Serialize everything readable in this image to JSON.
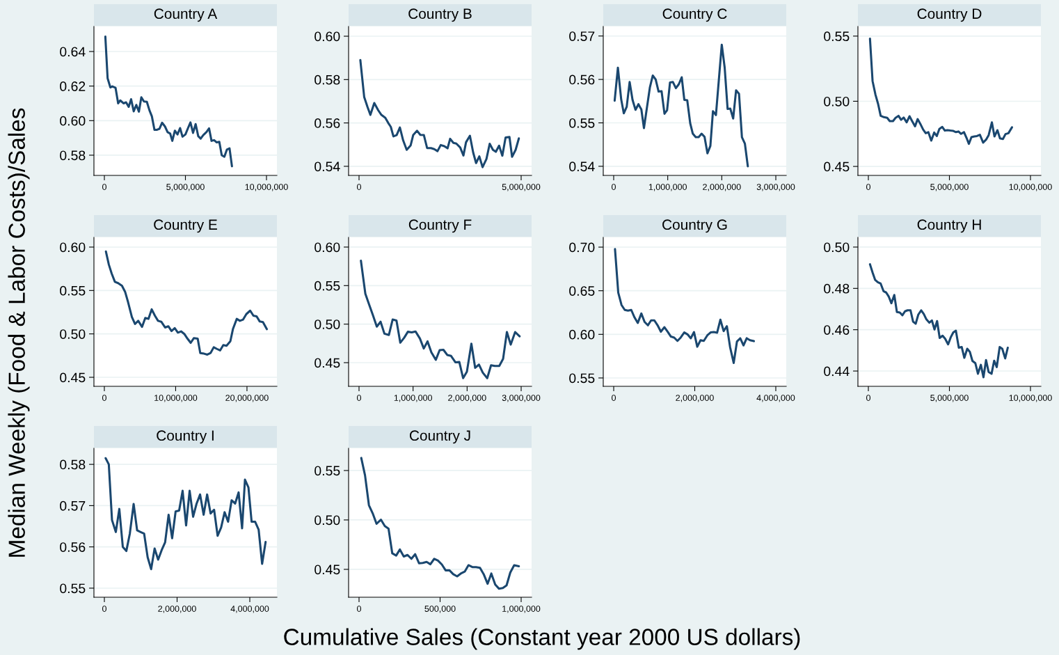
{
  "chart_data": [
    {
      "type": "line",
      "title": "Country A",
      "xlabel": "Cumulative Sales (Constant year 2000 US dollars)",
      "ylabel": "Median Weekly (Food & Labor Costs)/Sales",
      "color": "#1a476f",
      "grid": "y",
      "x": [
        60000,
        200000,
        370000,
        490000,
        690000,
        850000,
        980000,
        1180000,
        1340000,
        1500000,
        1650000,
        1810000,
        1970000,
        2130000,
        2280000,
        2440000,
        2620000,
        2780000,
        2930000,
        3090000,
        3250000,
        3400000,
        3560000,
        3740000,
        3900000,
        4060000,
        4190000,
        4350000,
        4510000,
        4670000,
        4820000,
        5000000,
        5160000,
        5310000,
        5470000,
        5630000,
        5790000,
        5940000,
        6100000,
        6300000,
        6460000,
        6610000,
        6770000,
        6930000,
        7090000,
        7240000,
        7400000,
        7560000,
        7720000,
        7870000
      ],
      "values": [
        0.6486,
        0.6245,
        0.6192,
        0.6198,
        0.619,
        0.61,
        0.6117,
        0.61,
        0.6106,
        0.608,
        0.6124,
        0.6054,
        0.6091,
        0.6052,
        0.6135,
        0.6111,
        0.6109,
        0.606,
        0.6025,
        0.5947,
        0.5947,
        0.5953,
        0.5988,
        0.5966,
        0.5933,
        0.5925,
        0.5883,
        0.5942,
        0.592,
        0.5957,
        0.5907,
        0.592,
        0.5957,
        0.599,
        0.5929,
        0.598,
        0.591,
        0.5896,
        0.5916,
        0.5934,
        0.5955,
        0.5883,
        0.5887,
        0.5874,
        0.5877,
        0.58,
        0.5791,
        0.5833,
        0.584,
        0.5736
      ],
      "xlim": [
        -644000,
        10644000
      ],
      "xticks": [
        {
          "value": 0,
          "label": "0"
        },
        {
          "value": 5000000,
          "label": "5,000,000"
        },
        {
          "value": 10000000,
          "label": "10,000,000"
        }
      ],
      "ylim": [
        0.5683,
        0.6545
      ],
      "yticks": [
        {
          "value": 0.58,
          "label": "0.58"
        },
        {
          "value": 0.6,
          "label": "0.60"
        },
        {
          "value": 0.62,
          "label": "0.62"
        },
        {
          "value": 0.64,
          "label": "0.64"
        }
      ]
    },
    {
      "type": "line",
      "title": "Country B",
      "color": "#1a476f",
      "grid": "y",
      "x": [
        40000,
        160000,
        260000,
        350000,
        470000,
        590000,
        690000,
        810000,
        900000,
        980000,
        1060000,
        1160000,
        1260000,
        1360000,
        1470000,
        1590000,
        1670000,
        1790000,
        1890000,
        2000000,
        2100000,
        2220000,
        2320000,
        2420000,
        2520000,
        2630000,
        2730000,
        2810000,
        2910000,
        3000000,
        3120000,
        3220000,
        3300000,
        3420000,
        3520000,
        3610000,
        3710000,
        3810000,
        3930000,
        4030000,
        4130000,
        4220000,
        4320000,
        4420000,
        4520000,
        4640000,
        4720000,
        4830000,
        4930000
      ],
      "values": [
        0.589,
        0.5719,
        0.5674,
        0.5637,
        0.5692,
        0.5659,
        0.5637,
        0.5624,
        0.56,
        0.5582,
        0.5538,
        0.5544,
        0.5579,
        0.552,
        0.5476,
        0.5496,
        0.5544,
        0.5564,
        0.5545,
        0.5544,
        0.5484,
        0.5484,
        0.5479,
        0.547,
        0.5498,
        0.5493,
        0.5483,
        0.5527,
        0.5508,
        0.5505,
        0.5487,
        0.545,
        0.5511,
        0.5541,
        0.5464,
        0.5415,
        0.5446,
        0.5396,
        0.5434,
        0.5504,
        0.5476,
        0.5467,
        0.5495,
        0.5449,
        0.5533,
        0.5535,
        0.5444,
        0.5476,
        0.5529
      ],
      "xlim": [
        -322000,
        5322000
      ],
      "xticks": [
        {
          "value": 0,
          "label": "0"
        },
        {
          "value": 5000000,
          "label": "5,000,000"
        }
      ],
      "ylim": [
        0.5358,
        0.6045
      ],
      "yticks": [
        {
          "value": 0.54,
          "label": "0.54"
        },
        {
          "value": 0.56,
          "label": "0.56"
        },
        {
          "value": 0.58,
          "label": "0.58"
        },
        {
          "value": 0.6,
          "label": "0.60"
        }
      ]
    },
    {
      "type": "line",
      "title": "Country C",
      "color": "#1a476f",
      "grid": "y",
      "x": [
        18000,
        78000,
        139000,
        187000,
        241000,
        295000,
        349000,
        404000,
        458000,
        512000,
        560000,
        614000,
        669000,
        723000,
        777000,
        831000,
        886000,
        940000,
        988000,
        1042000,
        1096000,
        1151000,
        1205000,
        1259000,
        1307000,
        1361000,
        1416000,
        1464000,
        1518000,
        1572000,
        1627000,
        1681000,
        1735000,
        1789000,
        1837000,
        1892000,
        1946000,
        2000000,
        2054000,
        2108000,
        2157000,
        2211000,
        2265000,
        2319000,
        2373000,
        2428000,
        2482000
      ],
      "values": [
        0.5551,
        0.5627,
        0.5554,
        0.5522,
        0.5537,
        0.5594,
        0.5553,
        0.553,
        0.5543,
        0.5531,
        0.5488,
        0.5534,
        0.5581,
        0.5609,
        0.56,
        0.5572,
        0.5573,
        0.5521,
        0.5529,
        0.5593,
        0.5594,
        0.558,
        0.5589,
        0.5605,
        0.5553,
        0.5552,
        0.5499,
        0.5475,
        0.5467,
        0.5467,
        0.5475,
        0.5468,
        0.543,
        0.5447,
        0.5527,
        0.5518,
        0.5599,
        0.568,
        0.5627,
        0.5532,
        0.5533,
        0.551,
        0.5575,
        0.5567,
        0.5467,
        0.5452,
        0.54
      ],
      "xlim": [
        -193000,
        3193000
      ],
      "xticks": [
        {
          "value": 0,
          "label": "0"
        },
        {
          "value": 1000000,
          "label": "1,000,000"
        },
        {
          "value": 2000000,
          "label": "2,000,000"
        },
        {
          "value": 3000000,
          "label": "3,000,000"
        }
      ],
      "ylim": [
        0.5379,
        0.5722
      ],
      "yticks": [
        {
          "value": 0.54,
          "label": "0.54"
        },
        {
          "value": 0.55,
          "label": "0.55"
        },
        {
          "value": 0.56,
          "label": "0.56"
        },
        {
          "value": 0.57,
          "label": "0.57"
        }
      ]
    },
    {
      "type": "line",
      "title": "Country D",
      "color": "#1a476f",
      "grid": "y",
      "x": [
        100000,
        260000,
        440000,
        600000,
        760000,
        960000,
        1160000,
        1320000,
        1520000,
        1680000,
        1860000,
        2020000,
        2180000,
        2360000,
        2540000,
        2700000,
        2880000,
        3040000,
        3200000,
        3380000,
        3540000,
        3700000,
        3880000,
        4060000,
        4220000,
        4380000,
        4560000,
        4720000,
        4880000,
        5060000,
        5220000,
        5400000,
        5560000,
        5720000,
        5900000,
        6060000,
        6200000,
        6360000,
        6540000,
        6700000,
        6880000,
        7080000,
        7260000,
        7420000,
        7620000,
        7780000,
        7960000,
        8120000,
        8300000,
        8460000,
        8640000,
        8860000
      ],
      "values": [
        0.548,
        0.5155,
        0.505,
        0.498,
        0.4888,
        0.4878,
        0.4873,
        0.4848,
        0.4848,
        0.4873,
        0.4888,
        0.4858,
        0.4875,
        0.4838,
        0.4885,
        0.4848,
        0.4808,
        0.4863,
        0.4828,
        0.4783,
        0.4755,
        0.4763,
        0.4698,
        0.476,
        0.4733,
        0.4788,
        0.4803,
        0.4775,
        0.4778,
        0.4775,
        0.4773,
        0.4763,
        0.4768,
        0.475,
        0.4763,
        0.4718,
        0.4673,
        0.4725,
        0.473,
        0.4733,
        0.4743,
        0.4683,
        0.4705,
        0.474,
        0.4838,
        0.473,
        0.4778,
        0.4715,
        0.471,
        0.4748,
        0.4755,
        0.48
      ],
      "xlim": [
        -644000,
        10644000
      ],
      "xticks": [
        {
          "value": 0,
          "label": "0"
        },
        {
          "value": 5000000,
          "label": "5,000,000"
        },
        {
          "value": 10000000,
          "label": "10,000,000"
        }
      ],
      "ylim": [
        0.4431,
        0.5574
      ],
      "yticks": [
        {
          "value": 0.45,
          "label": "0.45"
        },
        {
          "value": 0.5,
          "label": "0.50"
        },
        {
          "value": 0.55,
          "label": "0.55"
        }
      ]
    },
    {
      "type": "line",
      "title": "Country E",
      "color": "#1a476f",
      "grid": "y",
      "x": [
        220000,
        630000,
        1030000,
        1480000,
        1930000,
        2470000,
        2910000,
        3320000,
        3860000,
        4300000,
        4750000,
        5290000,
        5740000,
        6190000,
        6640000,
        7090000,
        7530000,
        7980000,
        8520000,
        8970000,
        9420000,
        9870000,
        10310000,
        10760000,
        11210000,
        11660000,
        12110000,
        12560000,
        13090000,
        13450000,
        13990000,
        14440000,
        14890000,
        15340000,
        15780000,
        16230000,
        16680000,
        17130000,
        17670000,
        18030000,
        18570000,
        19010000,
        19460000,
        19910000,
        20450000,
        20900000,
        21350000,
        21790000,
        22240000,
        22780000
      ],
      "values": [
        0.5949,
        0.5798,
        0.5695,
        0.56,
        0.5585,
        0.5555,
        0.5485,
        0.5368,
        0.5195,
        0.5114,
        0.5151,
        0.5081,
        0.5184,
        0.5173,
        0.5283,
        0.521,
        0.5151,
        0.514,
        0.5074,
        0.5088,
        0.5033,
        0.5066,
        0.5015,
        0.5029,
        0.5,
        0.4945,
        0.4897,
        0.4952,
        0.4945,
        0.4779,
        0.4772,
        0.4761,
        0.4779,
        0.4846,
        0.4827,
        0.4809,
        0.4871,
        0.4864,
        0.4915,
        0.5055,
        0.5173,
        0.5151,
        0.5165,
        0.5228,
        0.5268,
        0.521,
        0.5202,
        0.5143,
        0.5136,
        0.5055
      ],
      "xlim": [
        -1460000,
        24200000
      ],
      "xticks": [
        {
          "value": 0,
          "label": "0"
        },
        {
          "value": 10000000,
          "label": "10,000,000"
        },
        {
          "value": 20000000,
          "label": "20,000,000"
        }
      ],
      "ylim": [
        0.4396,
        0.6112
      ],
      "yticks": [
        {
          "value": 0.45,
          "label": "0.45"
        },
        {
          "value": 0.5,
          "label": "0.50"
        },
        {
          "value": 0.55,
          "label": "0.55"
        },
        {
          "value": 0.6,
          "label": "0.60"
        }
      ]
    },
    {
      "type": "line",
      "title": "Country F",
      "color": "#1a476f",
      "grid": "y",
      "x": [
        35000,
        117000,
        188000,
        258000,
        329000,
        399000,
        470000,
        552000,
        622000,
        693000,
        763000,
        834000,
        904000,
        975000,
        1045000,
        1127000,
        1198000,
        1268000,
        1339000,
        1421000,
        1492000,
        1562000,
        1632000,
        1703000,
        1785000,
        1856000,
        1926000,
        1996000,
        2079000,
        2149000,
        2220000,
        2290000,
        2372000,
        2443000,
        2513000,
        2595000,
        2666000,
        2736000,
        2807000,
        2889000,
        2971000
      ],
      "values": [
        0.5824,
        0.5394,
        0.5252,
        0.5114,
        0.4968,
        0.5031,
        0.4876,
        0.4859,
        0.506,
        0.5047,
        0.4759,
        0.4822,
        0.4901,
        0.4893,
        0.4905,
        0.4813,
        0.4684,
        0.4776,
        0.4634,
        0.4537,
        0.4663,
        0.4667,
        0.46,
        0.4588,
        0.4504,
        0.4508,
        0.4299,
        0.4383,
        0.4746,
        0.4433,
        0.4475,
        0.437,
        0.4299,
        0.4466,
        0.4458,
        0.4458,
        0.455,
        0.4897,
        0.4734,
        0.4897,
        0.4842
      ],
      "xlim": [
        -193000,
        3193000
      ],
      "xticks": [
        {
          "value": 0,
          "label": "0"
        },
        {
          "value": 1000000,
          "label": "1,000,000"
        },
        {
          "value": 2000000,
          "label": "2,000,000"
        },
        {
          "value": 3000000,
          "label": "3,000,000"
        }
      ],
      "ylim": [
        0.4193,
        0.6126
      ],
      "yticks": [
        {
          "value": 0.45,
          "label": "0.45"
        },
        {
          "value": 0.5,
          "label": "0.50"
        },
        {
          "value": 0.55,
          "label": "0.55"
        },
        {
          "value": 0.6,
          "label": "0.60"
        }
      ]
    },
    {
      "type": "line",
      "title": "Country G",
      "color": "#1a476f",
      "grid": "y",
      "x": [
        32000,
        112000,
        193000,
        273000,
        353000,
        433000,
        514000,
        594000,
        682000,
        762000,
        843000,
        923000,
        1003000,
        1083000,
        1164000,
        1252000,
        1332000,
        1412000,
        1492000,
        1573000,
        1653000,
        1741000,
        1821000,
        1902000,
        1982000,
        2062000,
        2143000,
        2223000,
        2311000,
        2391000,
        2472000,
        2552000,
        2632000,
        2713000,
        2793000,
        2873000,
        2961000,
        3042000,
        3122000,
        3202000,
        3283000,
        3363000,
        3459000
      ],
      "values": [
        0.6978,
        0.6478,
        0.6336,
        0.628,
        0.6272,
        0.628,
        0.6194,
        0.6131,
        0.6239,
        0.6142,
        0.6104,
        0.616,
        0.616,
        0.6104,
        0.603,
        0.6082,
        0.603,
        0.5974,
        0.5963,
        0.5925,
        0.5963,
        0.6022,
        0.6,
        0.5955,
        0.6026,
        0.5858,
        0.5933,
        0.5925,
        0.5989,
        0.6022,
        0.6026,
        0.6019,
        0.6168,
        0.6037,
        0.6093,
        0.5851,
        0.5672,
        0.5918,
        0.5955,
        0.5873,
        0.5955,
        0.5933,
        0.5922
      ],
      "xlim": [
        -258000,
        4258000
      ],
      "xticks": [
        {
          "value": 0,
          "label": "0"
        },
        {
          "value": 2000000,
          "label": "2,000,000"
        },
        {
          "value": 4000000,
          "label": "4,000,000"
        }
      ],
      "ylim": [
        0.5404,
        0.7112
      ],
      "yticks": [
        {
          "value": 0.55,
          "label": "0.55"
        },
        {
          "value": 0.6,
          "label": "0.60"
        },
        {
          "value": 0.65,
          "label": "0.65"
        },
        {
          "value": 0.7,
          "label": "0.70"
        }
      ]
    },
    {
      "type": "line",
      "title": "Country H",
      "color": "#1a476f",
      "grid": "y",
      "x": [
        100000,
        260000,
        420000,
        580000,
        760000,
        940000,
        1100000,
        1260000,
        1420000,
        1600000,
        1760000,
        1940000,
        2100000,
        2260000,
        2420000,
        2600000,
        2760000,
        2920000,
        3080000,
        3260000,
        3420000,
        3580000,
        3760000,
        3920000,
        4080000,
        4240000,
        4400000,
        4580000,
        4740000,
        4920000,
        5080000,
        5240000,
        5400000,
        5580000,
        5760000,
        5920000,
        6100000,
        6260000,
        6420000,
        6600000,
        6760000,
        6940000,
        7100000,
        7260000,
        7420000,
        7600000,
        7760000,
        7920000,
        8100000,
        8260000,
        8440000,
        8600000
      ],
      "values": [
        0.4917,
        0.4877,
        0.4841,
        0.483,
        0.4823,
        0.4786,
        0.478,
        0.476,
        0.4728,
        0.4768,
        0.4686,
        0.4683,
        0.467,
        0.4689,
        0.4694,
        0.4694,
        0.4639,
        0.4629,
        0.4673,
        0.4694,
        0.4676,
        0.465,
        0.4634,
        0.4645,
        0.4601,
        0.4642,
        0.456,
        0.4571,
        0.4556,
        0.4529,
        0.4563,
        0.4587,
        0.4595,
        0.4513,
        0.4516,
        0.4464,
        0.4508,
        0.4493,
        0.4449,
        0.4438,
        0.4387,
        0.443,
        0.437,
        0.4453,
        0.4395,
        0.4387,
        0.445,
        0.4419,
        0.4516,
        0.4508,
        0.4461,
        0.4513
      ],
      "xlim": [
        -644000,
        10644000
      ],
      "xticks": [
        {
          "value": 0,
          "label": "0"
        },
        {
          "value": 5000000,
          "label": "5,000,000"
        },
        {
          "value": 10000000,
          "label": "10,000,000"
        }
      ],
      "ylim": [
        0.4326,
        0.5047
      ],
      "yticks": [
        {
          "value": 0.44,
          "label": "0.44"
        },
        {
          "value": 0.46,
          "label": "0.46"
        },
        {
          "value": 0.48,
          "label": "0.48"
        },
        {
          "value": 0.5,
          "label": "0.50"
        }
      ]
    },
    {
      "type": "line",
      "title": "Country I",
      "color": "#1a476f",
      "grid": "y",
      "x": [
        35000,
        122000,
        210000,
        315000,
        411000,
        507000,
        604000,
        700000,
        805000,
        901000,
        997000,
        1094000,
        1190000,
        1286000,
        1382000,
        1479000,
        1575000,
        1671000,
        1767000,
        1864000,
        1960000,
        2056000,
        2152000,
        2248000,
        2345000,
        2441000,
        2537000,
        2633000,
        2730000,
        2826000,
        2922000,
        3018000,
        3115000,
        3211000,
        3307000,
        3403000,
        3500000,
        3596000,
        3692000,
        3788000,
        3867000,
        3963000,
        4050000,
        4147000,
        4243000,
        4339000,
        4435000
      ],
      "values": [
        0.5815,
        0.58,
        0.5665,
        0.5636,
        0.5692,
        0.56,
        0.559,
        0.5632,
        0.5704,
        0.564,
        0.5636,
        0.5632,
        0.5575,
        0.5546,
        0.5596,
        0.5569,
        0.5592,
        0.5611,
        0.5678,
        0.5621,
        0.5686,
        0.5688,
        0.5736,
        0.5652,
        0.5736,
        0.5673,
        0.5705,
        0.5727,
        0.5678,
        0.5727,
        0.5681,
        0.569,
        0.5627,
        0.5647,
        0.5684,
        0.5661,
        0.5713,
        0.5705,
        0.5732,
        0.5645,
        0.5763,
        0.5744,
        0.5661,
        0.5661,
        0.5642,
        0.5559,
        0.5612
      ],
      "xlim": [
        -287000,
        4746000
      ],
      "xticks": [
        {
          "value": 0,
          "label": "0"
        },
        {
          "value": 2000000,
          "label": "2,000,000"
        },
        {
          "value": 4000000,
          "label": "4,000,000"
        }
      ],
      "ylim": [
        0.5478,
        0.5839
      ],
      "yticks": [
        {
          "value": 0.55,
          "label": "0.55"
        },
        {
          "value": 0.56,
          "label": "0.56"
        },
        {
          "value": 0.57,
          "label": "0.57"
        },
        {
          "value": 0.58,
          "label": "0.58"
        }
      ]
    },
    {
      "type": "line",
      "title": "Country J",
      "color": "#1a476f",
      "grid": "y",
      "x": [
        13700,
        37000,
        61000,
        84000,
        108000,
        135000,
        159000,
        182000,
        205000,
        229000,
        252000,
        276000,
        299000,
        323000,
        346000,
        370000,
        393000,
        417000,
        440000,
        464000,
        487000,
        511000,
        534000,
        558000,
        581000,
        605000,
        628000,
        652000,
        675000,
        699000,
        722000,
        746000,
        769000,
        793000,
        816000,
        840000,
        863000,
        887000,
        910000,
        933000,
        957000,
        986000
      ],
      "values": [
        0.5627,
        0.5451,
        0.5149,
        0.5068,
        0.4961,
        0.5003,
        0.4938,
        0.4912,
        0.4662,
        0.464,
        0.4701,
        0.463,
        0.4646,
        0.4607,
        0.4653,
        0.4562,
        0.4565,
        0.4575,
        0.4552,
        0.4607,
        0.4588,
        0.4549,
        0.449,
        0.449,
        0.4451,
        0.4429,
        0.4458,
        0.4477,
        0.4542,
        0.4523,
        0.4523,
        0.4516,
        0.4451,
        0.4354,
        0.4458,
        0.4347,
        0.4305,
        0.4312,
        0.4338,
        0.4468,
        0.4542,
        0.4532
      ],
      "xlim": [
        -64400,
        1064400
      ],
      "xticks": [
        {
          "value": 0,
          "label": "0"
        },
        {
          "value": 500000,
          "label": "500,000"
        },
        {
          "value": 1000000,
          "label": "1,000,000"
        }
      ],
      "ylim": [
        0.4218,
        0.5725
      ],
      "yticks": [
        {
          "value": 0.45,
          "label": "0.45"
        },
        {
          "value": 0.5,
          "label": "0.50"
        },
        {
          "value": 0.55,
          "label": "0.55"
        }
      ]
    }
  ]
}
